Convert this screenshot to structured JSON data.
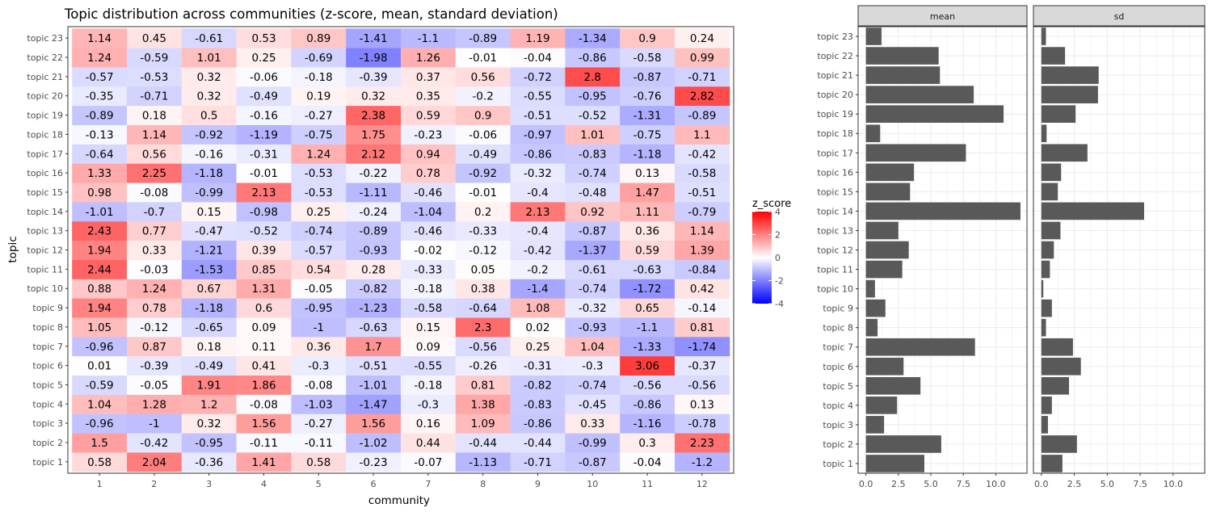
{
  "chart_data": [
    {
      "type": "heatmap",
      "title": "Topic distribution across communities (z-score, mean, standard deviation)",
      "xlabel": "community",
      "ylabel": "topic",
      "x_categories": [
        "1",
        "2",
        "3",
        "4",
        "5",
        "6",
        "7",
        "8",
        "9",
        "10",
        "11",
        "12"
      ],
      "y_categories": [
        "topic 1",
        "topic 2",
        "topic 3",
        "topic 4",
        "topic 5",
        "topic 6",
        "topic 7",
        "topic 8",
        "topic 9",
        "topic 10",
        "topic 11",
        "topic 12",
        "topic 13",
        "topic 14",
        "topic 15",
        "topic 16",
        "topic 17",
        "topic 18",
        "topic 19",
        "topic 20",
        "topic 21",
        "topic 22",
        "topic 23"
      ],
      "values": [
        [
          0.58,
          2.04,
          -0.36,
          1.41,
          0.58,
          -0.23,
          -0.07,
          -1.13,
          -0.71,
          -0.87,
          -0.04,
          -1.2
        ],
        [
          1.5,
          -0.42,
          -0.95,
          -0.11,
          -0.11,
          -1.02,
          0.44,
          -0.44,
          -0.44,
          -0.99,
          0.3,
          2.23
        ],
        [
          -0.96,
          -1,
          0.32,
          1.56,
          -0.27,
          1.56,
          0.16,
          1.09,
          -0.86,
          0.33,
          -1.16,
          -0.78
        ],
        [
          1.04,
          1.28,
          1.2,
          -0.08,
          -1.03,
          -1.47,
          -0.3,
          1.38,
          -0.83,
          -0.45,
          -0.86,
          0.13
        ],
        [
          -0.59,
          -0.05,
          1.91,
          1.86,
          -0.08,
          -1.01,
          -0.18,
          0.81,
          -0.82,
          -0.74,
          -0.56,
          -0.56
        ],
        [
          0.01,
          -0.39,
          -0.49,
          0.41,
          -0.3,
          -0.51,
          -0.55,
          -0.26,
          -0.31,
          -0.3,
          3.06,
          -0.37
        ],
        [
          -0.96,
          0.87,
          0.18,
          0.11,
          0.36,
          1.7,
          0.09,
          -0.56,
          0.25,
          1.04,
          -1.33,
          -1.74
        ],
        [
          1.05,
          -0.12,
          -0.65,
          0.09,
          -1,
          -0.63,
          0.15,
          2.3,
          0.02,
          -0.93,
          -1.1,
          0.81
        ],
        [
          1.94,
          0.78,
          -1.18,
          0.6,
          -0.95,
          -1.23,
          -0.58,
          -0.64,
          1.08,
          -0.32,
          0.65,
          -0.14
        ],
        [
          0.88,
          1.24,
          0.67,
          1.31,
          -0.05,
          -0.82,
          -0.18,
          0.38,
          -1.4,
          -0.74,
          -1.72,
          0.42
        ],
        [
          2.44,
          -0.03,
          -1.53,
          0.85,
          0.54,
          0.28,
          -0.33,
          0.05,
          -0.2,
          -0.61,
          -0.63,
          -0.84
        ],
        [
          1.94,
          0.33,
          -1.21,
          0.39,
          -0.57,
          -0.93,
          -0.02,
          -0.12,
          -0.42,
          -1.37,
          0.59,
          1.39
        ],
        [
          2.43,
          0.77,
          -0.47,
          -0.52,
          -0.74,
          -0.89,
          -0.46,
          -0.33,
          -0.4,
          -0.87,
          0.36,
          1.14
        ],
        [
          -1.01,
          -0.7,
          0.15,
          -0.98,
          0.25,
          -0.24,
          -1.04,
          0.2,
          2.13,
          0.92,
          1.11,
          -0.79
        ],
        [
          0.98,
          -0.08,
          -0.99,
          2.13,
          -0.53,
          -1.11,
          -0.46,
          -0.01,
          -0.4,
          -0.48,
          1.47,
          -0.51
        ],
        [
          1.33,
          2.25,
          -1.18,
          -0.01,
          -0.53,
          -0.22,
          0.78,
          -0.92,
          -0.32,
          -0.74,
          0.13,
          -0.58
        ],
        [
          -0.64,
          0.56,
          -0.16,
          -0.31,
          1.24,
          2.12,
          0.94,
          -0.49,
          -0.86,
          -0.83,
          -1.18,
          -0.42
        ],
        [
          -0.13,
          1.14,
          -0.92,
          -1.19,
          -0.75,
          1.75,
          -0.23,
          -0.06,
          -0.97,
          1.01,
          -0.75,
          1.1
        ],
        [
          -0.89,
          0.18,
          0.5,
          -0.16,
          -0.27,
          2.38,
          0.59,
          0.9,
          -0.51,
          -0.52,
          -1.31,
          -0.89
        ],
        [
          -0.35,
          -0.71,
          0.32,
          -0.49,
          0.19,
          0.32,
          0.35,
          -0.2,
          -0.55,
          -0.95,
          -0.76,
          2.82
        ],
        [
          -0.57,
          -0.53,
          0.32,
          -0.06,
          -0.18,
          -0.39,
          0.37,
          0.56,
          -0.72,
          2.8,
          -0.87,
          -0.71
        ],
        [
          1.24,
          -0.59,
          1.01,
          0.25,
          -0.69,
          -1.98,
          1.26,
          -0.01,
          -0.04,
          -0.86,
          -0.58,
          0.99
        ],
        [
          1.14,
          0.45,
          -0.61,
          0.53,
          0.89,
          -1.41,
          -1.1,
          -0.89,
          1.19,
          -1.34,
          0.9,
          0.24
        ]
      ],
      "legend": {
        "title": "z_score",
        "ticks": [
          4,
          2,
          0,
          -2,
          -4
        ],
        "range": [
          -4,
          4
        ],
        "colors": {
          "low": "#0000ff",
          "mid": "#ffffff",
          "high": "#ff0000"
        }
      }
    },
    {
      "type": "bar",
      "orientation": "horizontal",
      "facet_title": "mean",
      "categories": [
        "topic 1",
        "topic 2",
        "topic 3",
        "topic 4",
        "topic 5",
        "topic 6",
        "topic 7",
        "topic 8",
        "topic 9",
        "topic 10",
        "topic 11",
        "topic 12",
        "topic 13",
        "topic 14",
        "topic 15",
        "topic 16",
        "topic 17",
        "topic 18",
        "topic 19",
        "topic 20",
        "topic 21",
        "topic 22",
        "topic 23"
      ],
      "values": [
        4.5,
        5.8,
        1.4,
        2.4,
        4.2,
        2.9,
        8.4,
        0.9,
        1.5,
        0.7,
        2.8,
        3.3,
        2.5,
        11.9,
        3.4,
        3.7,
        7.7,
        1.1,
        10.6,
        8.3,
        5.7,
        5.6,
        1.2
      ],
      "xlim": [
        -0.6,
        12.4
      ],
      "x_ticks": [
        "0.0",
        "2.5",
        "5.0",
        "7.5",
        "10.0"
      ],
      "bar_color": "#595959"
    },
    {
      "type": "bar",
      "orientation": "horizontal",
      "facet_title": "sd",
      "categories": [
        "topic 1",
        "topic 2",
        "topic 3",
        "topic 4",
        "topic 5",
        "topic 6",
        "topic 7",
        "topic 8",
        "topic 9",
        "topic 10",
        "topic 11",
        "topic 12",
        "topic 13",
        "topic 14",
        "topic 15",
        "topic 16",
        "topic 17",
        "topic 18",
        "topic 19",
        "topic 20",
        "topic 21",
        "topic 22",
        "topic 23"
      ],
      "values": [
        1.6,
        2.7,
        0.5,
        0.8,
        2.1,
        3.0,
        2.4,
        0.35,
        0.8,
        0.15,
        0.65,
        0.95,
        1.45,
        7.8,
        1.25,
        1.5,
        3.5,
        0.4,
        2.6,
        4.3,
        4.35,
        1.8,
        0.35
      ],
      "xlim": [
        -0.6,
        12.4
      ],
      "x_ticks": [
        "0.0",
        "2.5",
        "5.0",
        "7.5",
        "10.0"
      ],
      "bar_color": "#595959"
    }
  ]
}
